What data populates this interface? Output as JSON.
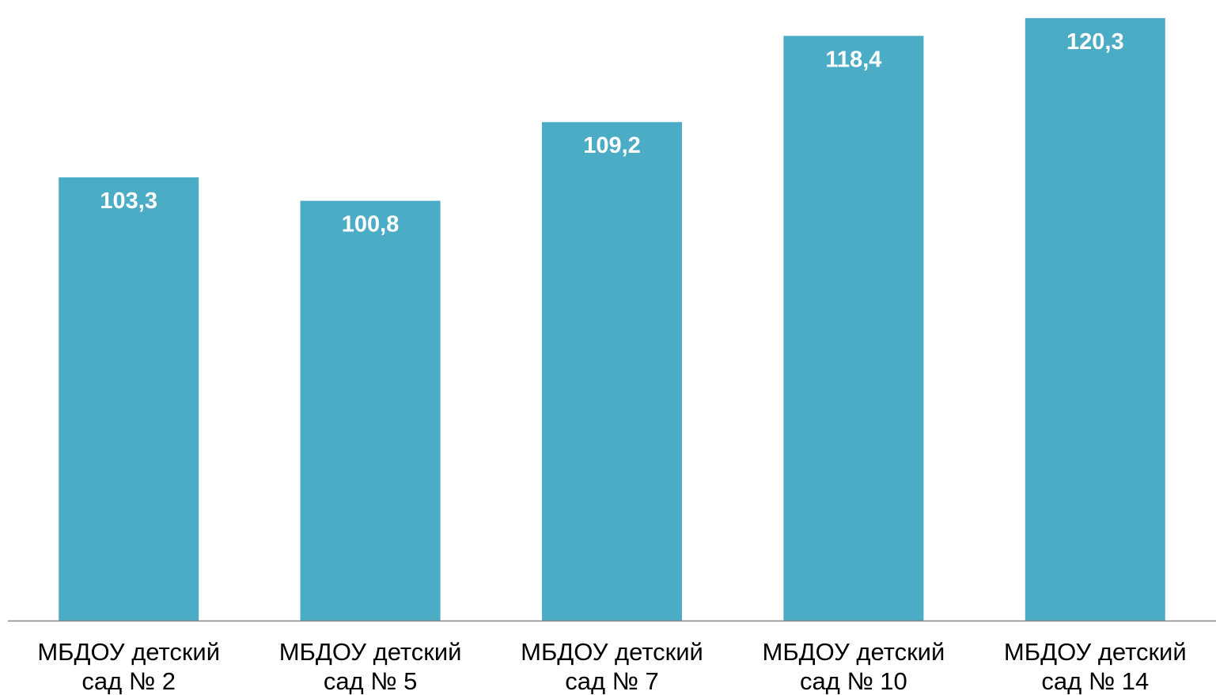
{
  "chart_data": {
    "type": "bar",
    "categories": [
      [
        "МБДОУ детский",
        "сад № 2"
      ],
      [
        "МБДОУ детский",
        "сад № 5"
      ],
      [
        "МБДОУ детский",
        "сад № 7"
      ],
      [
        "МБДОУ детский",
        "сад № 10"
      ],
      [
        "МБДОУ детский",
        "сад № 14"
      ]
    ],
    "values": [
      103.3,
      100.8,
      109.2,
      118.4,
      120.3
    ],
    "value_labels": [
      "103,3",
      "100,8",
      "109,2",
      "118,4",
      "120,3"
    ],
    "title": "",
    "xlabel": "",
    "ylabel": "",
    "ylim": [
      56,
      121.3
    ],
    "grid": false,
    "legend": "none",
    "bar_color": "#4BACC6",
    "label_color": "#FFFFFF",
    "axis_color": "#868686"
  }
}
